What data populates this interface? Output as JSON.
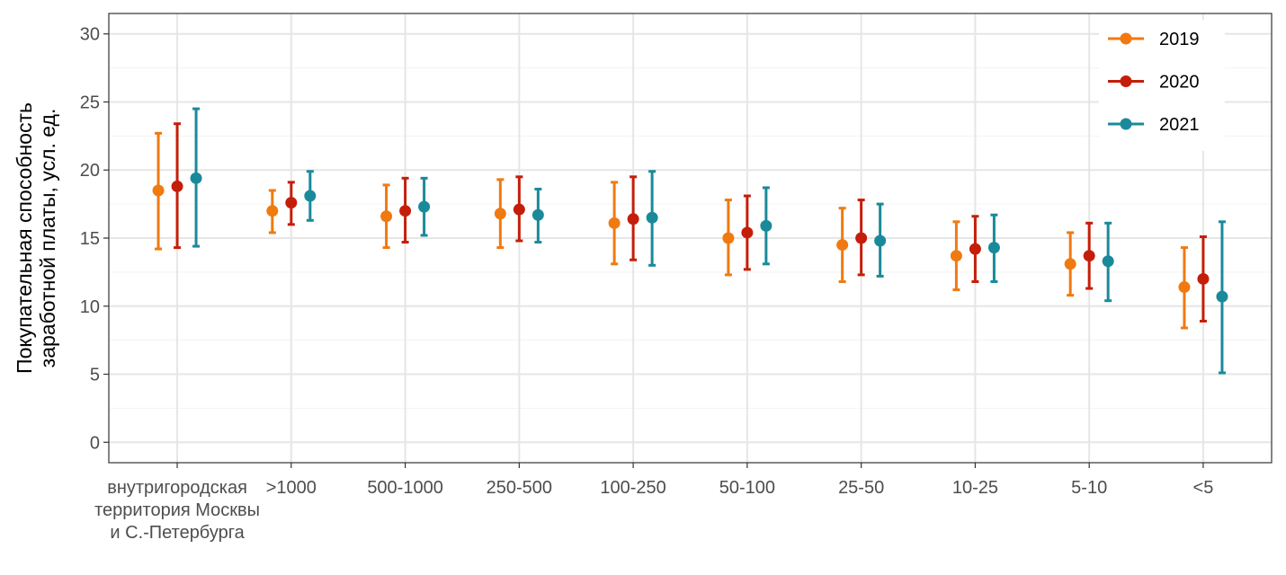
{
  "chart_data": {
    "type": "scatter",
    "subtype": "point-errorbar",
    "title": "",
    "xlabel": "",
    "ylabel_lines": [
      "Покупательная способность",
      "заработной платы, усл. ед."
    ],
    "ylim": [
      -1.5,
      31.5
    ],
    "yticks": [
      0,
      5,
      10,
      15,
      20,
      25,
      30
    ],
    "grid": true,
    "legend_position": "top-right",
    "categories": [
      [
        "внутригородская",
        "территория Москвы",
        "и С.-Петербурга"
      ],
      [
        ">1000"
      ],
      [
        "500-1000"
      ],
      [
        "250-500"
      ],
      [
        "100-250"
      ],
      [
        "50-100"
      ],
      [
        "25-50"
      ],
      [
        "10-25"
      ],
      [
        "5-10"
      ],
      [
        "<5"
      ]
    ],
    "series": [
      {
        "name": "2019",
        "color": "#F07A10",
        "values": [
          18.5,
          17.0,
          16.6,
          16.8,
          16.1,
          15.0,
          14.5,
          13.7,
          13.1,
          11.4
        ],
        "lower": [
          14.2,
          15.4,
          14.3,
          14.3,
          13.1,
          12.3,
          11.8,
          11.2,
          10.8,
          8.4
        ],
        "upper": [
          22.7,
          18.5,
          18.9,
          19.3,
          19.1,
          17.8,
          17.2,
          16.2,
          15.4,
          14.3
        ]
      },
      {
        "name": "2020",
        "color": "#C41E0A",
        "values": [
          18.8,
          17.6,
          17.0,
          17.1,
          16.4,
          15.4,
          15.0,
          14.2,
          13.7,
          12.0
        ],
        "lower": [
          14.3,
          16.0,
          14.7,
          14.8,
          13.4,
          12.7,
          12.3,
          11.8,
          11.3,
          8.9
        ],
        "upper": [
          23.4,
          19.1,
          19.4,
          19.5,
          19.5,
          18.1,
          17.8,
          16.6,
          16.1,
          15.1
        ]
      },
      {
        "name": "2021",
        "color": "#1A8A9A",
        "values": [
          19.4,
          18.1,
          17.3,
          16.7,
          16.5,
          15.9,
          14.8,
          14.3,
          13.3,
          10.7
        ],
        "lower": [
          14.4,
          16.3,
          15.2,
          14.7,
          13.0,
          13.1,
          12.2,
          11.8,
          10.4,
          5.1
        ],
        "upper": [
          24.5,
          19.9,
          19.4,
          18.6,
          19.9,
          18.7,
          17.5,
          16.7,
          16.1,
          16.2
        ]
      }
    ]
  }
}
